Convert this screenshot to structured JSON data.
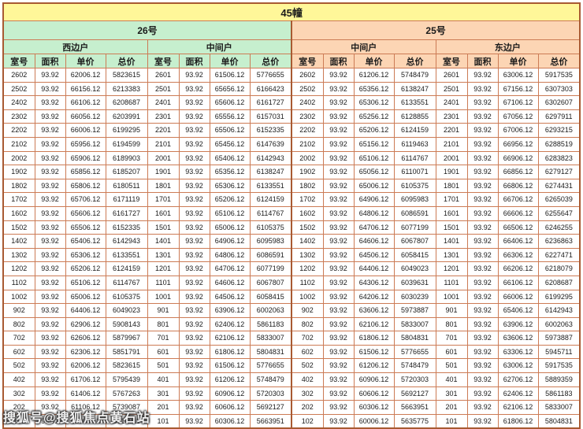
{
  "page": {
    "title": "45幢",
    "watermark": "搜狐号@搜狐焦点黄石站"
  },
  "colors": {
    "title_bg": "#FFF799",
    "building_26_bg": "#C6EFCE",
    "building_25_bg": "#FCD5B4",
    "grid_border": "#CC7B55",
    "frame_border": "#A85A32",
    "cell_bg": "#FFFFFF"
  },
  "chart_data": {
    "type": "table",
    "title": "45幢",
    "buildings": [
      {
        "name": "26号",
        "unit_types": [
          "西边户",
          "中间户"
        ]
      },
      {
        "name": "25号",
        "unit_types": [
          "中间户",
          "东边户"
        ]
      }
    ],
    "unit_headers": [
      "西边户",
      "中间户",
      "中间户",
      "东边户"
    ],
    "column_headers": [
      "室号",
      "面积",
      "单价",
      "总价"
    ],
    "rows": [
      [
        "2602",
        "93.92",
        "62006.12",
        "5823615",
        "2601",
        "93.92",
        "61506.12",
        "5776655",
        "2602",
        "93.92",
        "61206.12",
        "5748479",
        "2601",
        "93.92",
        "63006.12",
        "5917535"
      ],
      [
        "2502",
        "93.92",
        "66156.12",
        "6213383",
        "2501",
        "93.92",
        "65656.12",
        "6166423",
        "2502",
        "93.92",
        "65356.12",
        "6138247",
        "2501",
        "93.92",
        "67156.12",
        "6307303"
      ],
      [
        "2402",
        "93.92",
        "66106.12",
        "6208687",
        "2401",
        "93.92",
        "65606.12",
        "6161727",
        "2402",
        "93.92",
        "65306.12",
        "6133551",
        "2401",
        "93.92",
        "67106.12",
        "6302607"
      ],
      [
        "2302",
        "93.92",
        "66056.12",
        "6203991",
        "2301",
        "93.92",
        "65556.12",
        "6157031",
        "2302",
        "93.92",
        "65256.12",
        "6128855",
        "2301",
        "93.92",
        "67056.12",
        "6297911"
      ],
      [
        "2202",
        "93.92",
        "66006.12",
        "6199295",
        "2201",
        "93.92",
        "65506.12",
        "6152335",
        "2202",
        "93.92",
        "65206.12",
        "6124159",
        "2201",
        "93.92",
        "67006.12",
        "6293215"
      ],
      [
        "2102",
        "93.92",
        "65956.12",
        "6194599",
        "2101",
        "93.92",
        "65456.12",
        "6147639",
        "2102",
        "93.92",
        "65156.12",
        "6119463",
        "2101",
        "93.92",
        "66956.12",
        "6288519"
      ],
      [
        "2002",
        "93.92",
        "65906.12",
        "6189903",
        "2001",
        "93.92",
        "65406.12",
        "6142943",
        "2002",
        "93.92",
        "65106.12",
        "6114767",
        "2001",
        "93.92",
        "66906.12",
        "6283823"
      ],
      [
        "1902",
        "93.92",
        "65856.12",
        "6185207",
        "1901",
        "93.92",
        "65356.12",
        "6138247",
        "1902",
        "93.92",
        "65056.12",
        "6110071",
        "1901",
        "93.92",
        "66856.12",
        "6279127"
      ],
      [
        "1802",
        "93.92",
        "65806.12",
        "6180511",
        "1801",
        "93.92",
        "65306.12",
        "6133551",
        "1802",
        "93.92",
        "65006.12",
        "6105375",
        "1801",
        "93.92",
        "66806.12",
        "6274431"
      ],
      [
        "1702",
        "93.92",
        "65706.12",
        "6171119",
        "1701",
        "93.92",
        "65206.12",
        "6124159",
        "1702",
        "93.92",
        "64906.12",
        "6095983",
        "1701",
        "93.92",
        "66706.12",
        "6265039"
      ],
      [
        "1602",
        "93.92",
        "65606.12",
        "6161727",
        "1601",
        "93.92",
        "65106.12",
        "6114767",
        "1602",
        "93.92",
        "64806.12",
        "6086591",
        "1601",
        "93.92",
        "66606.12",
        "6255647"
      ],
      [
        "1502",
        "93.92",
        "65506.12",
        "6152335",
        "1501",
        "93.92",
        "65006.12",
        "6105375",
        "1502",
        "93.92",
        "64706.12",
        "6077199",
        "1501",
        "93.92",
        "66506.12",
        "6246255"
      ],
      [
        "1402",
        "93.92",
        "65406.12",
        "6142943",
        "1401",
        "93.92",
        "64906.12",
        "6095983",
        "1402",
        "93.92",
        "64606.12",
        "6067807",
        "1401",
        "93.92",
        "66406.12",
        "6236863"
      ],
      [
        "1302",
        "93.92",
        "65306.12",
        "6133551",
        "1301",
        "93.92",
        "64806.12",
        "6086591",
        "1302",
        "93.92",
        "64506.12",
        "6058415",
        "1301",
        "93.92",
        "66306.12",
        "6227471"
      ],
      [
        "1202",
        "93.92",
        "65206.12",
        "6124159",
        "1201",
        "93.92",
        "64706.12",
        "6077199",
        "1202",
        "93.92",
        "64406.12",
        "6049023",
        "1201",
        "93.92",
        "66206.12",
        "6218079"
      ],
      [
        "1102",
        "93.92",
        "65106.12",
        "6114767",
        "1101",
        "93.92",
        "64606.12",
        "6067807",
        "1102",
        "93.92",
        "64306.12",
        "6039631",
        "1101",
        "93.92",
        "66106.12",
        "6208687"
      ],
      [
        "1002",
        "93.92",
        "65006.12",
        "6105375",
        "1001",
        "93.92",
        "64506.12",
        "6058415",
        "1002",
        "93.92",
        "64206.12",
        "6030239",
        "1001",
        "93.92",
        "66006.12",
        "6199295"
      ],
      [
        "902",
        "93.92",
        "64406.12",
        "6049023",
        "901",
        "93.92",
        "63906.12",
        "6002063",
        "902",
        "93.92",
        "63606.12",
        "5973887",
        "901",
        "93.92",
        "65406.12",
        "6142943"
      ],
      [
        "802",
        "93.92",
        "62906.12",
        "5908143",
        "801",
        "93.92",
        "62406.12",
        "5861183",
        "802",
        "93.92",
        "62106.12",
        "5833007",
        "801",
        "93.92",
        "63906.12",
        "6002063"
      ],
      [
        "702",
        "93.92",
        "62606.12",
        "5879967",
        "701",
        "93.92",
        "62106.12",
        "5833007",
        "702",
        "93.92",
        "61806.12",
        "5804831",
        "701",
        "93.92",
        "63606.12",
        "5973887"
      ],
      [
        "602",
        "93.92",
        "62306.12",
        "5851791",
        "601",
        "93.92",
        "61806.12",
        "5804831",
        "602",
        "93.92",
        "61506.12",
        "5776655",
        "601",
        "93.92",
        "63306.12",
        "5945711"
      ],
      [
        "502",
        "93.92",
        "62006.12",
        "5823615",
        "501",
        "93.92",
        "61506.12",
        "5776655",
        "502",
        "93.92",
        "61206.12",
        "5748479",
        "501",
        "93.92",
        "63006.12",
        "5917535"
      ],
      [
        "402",
        "93.92",
        "61706.12",
        "5795439",
        "401",
        "93.92",
        "61206.12",
        "5748479",
        "402",
        "93.92",
        "60906.12",
        "5720303",
        "401",
        "93.92",
        "62706.12",
        "5889359"
      ],
      [
        "302",
        "93.92",
        "61406.12",
        "5767263",
        "301",
        "93.92",
        "60906.12",
        "5720303",
        "302",
        "93.92",
        "60606.12",
        "5692127",
        "301",
        "93.92",
        "62406.12",
        "5861183"
      ],
      [
        "202",
        "93.92",
        "61106.12",
        "5739087",
        "201",
        "93.92",
        "60606.12",
        "5692127",
        "202",
        "93.92",
        "60306.12",
        "5663951",
        "201",
        "93.92",
        "62106.12",
        "5833007"
      ],
      [
        "102",
        "93.92",
        "60806.12",
        "5710911",
        "101",
        "93.92",
        "60306.12",
        "5663951",
        "102",
        "93.92",
        "60006.12",
        "5635775",
        "101",
        "93.92",
        "61806.12",
        "5804831"
      ]
    ]
  }
}
